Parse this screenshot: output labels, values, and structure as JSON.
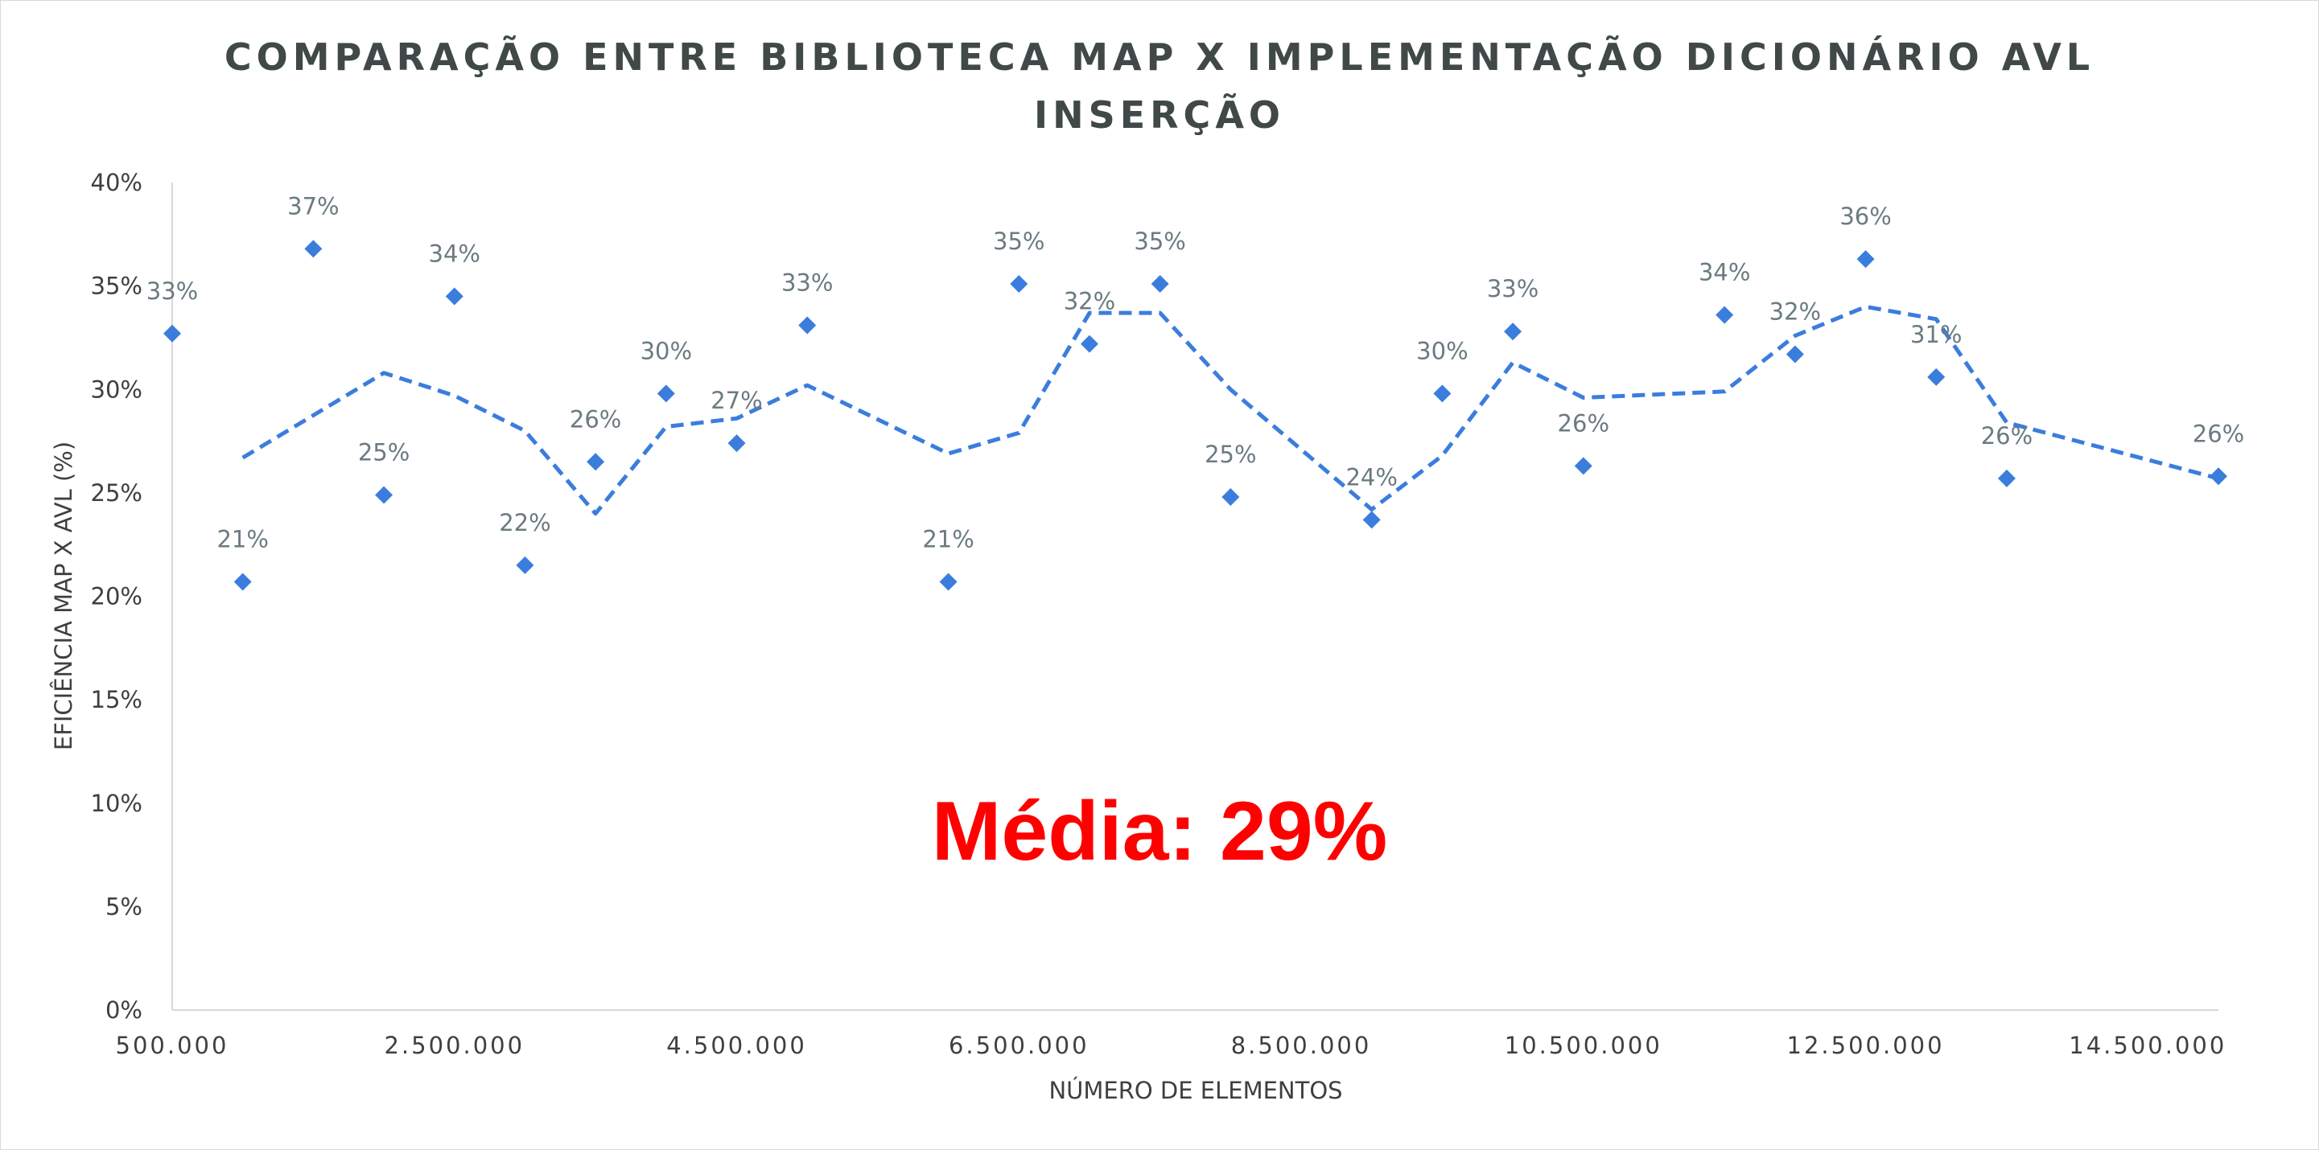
{
  "chart_data": {
    "type": "scatter",
    "title_lines": [
      "COMPARAÇÃO ENTRE BIBLIOTECA MAP X IMPLEMENTAÇÃO DICIONÁRIO AVL",
      "INSERÇÃO"
    ],
    "xlabel": "NÚMERO DE ELEMENTOS",
    "ylabel": "EFICIÊNCIA MAP X AVL (%)",
    "xlim": [
      500000,
      15000000
    ],
    "ylim": [
      0,
      40
    ],
    "x_ticks": [
      {
        "value": 500000,
        "label": "500.000"
      },
      {
        "value": 2500000,
        "label": "2.500.000"
      },
      {
        "value": 4500000,
        "label": "4.500.000"
      },
      {
        "value": 6500000,
        "label": "6.500.000"
      },
      {
        "value": 8500000,
        "label": "8.500.000"
      },
      {
        "value": 10500000,
        "label": "10.500.000"
      },
      {
        "value": 12500000,
        "label": "12.500.000"
      },
      {
        "value": 14500000,
        "label": "14.500.000"
      }
    ],
    "y_ticks": [
      {
        "value": 0,
        "label": "0%"
      },
      {
        "value": 5,
        "label": "5%"
      },
      {
        "value": 10,
        "label": "10%"
      },
      {
        "value": 15,
        "label": "15%"
      },
      {
        "value": 20,
        "label": "20%"
      },
      {
        "value": 25,
        "label": "25%"
      },
      {
        "value": 30,
        "label": "30%"
      },
      {
        "value": 35,
        "label": "35%"
      },
      {
        "value": 40,
        "label": "40%"
      }
    ],
    "gridlines": false,
    "points": [
      {
        "x": 500000,
        "y": 32.7,
        "label": "33%"
      },
      {
        "x": 1000000,
        "y": 20.7,
        "label": "21%"
      },
      {
        "x": 1500000,
        "y": 36.8,
        "label": "37%"
      },
      {
        "x": 2000000,
        "y": 24.9,
        "label": "25%"
      },
      {
        "x": 2500000,
        "y": 34.5,
        "label": "34%"
      },
      {
        "x": 3000000,
        "y": 21.5,
        "label": "22%"
      },
      {
        "x": 3500000,
        "y": 26.5,
        "label": "26%"
      },
      {
        "x": 4000000,
        "y": 29.8,
        "label": "30%"
      },
      {
        "x": 4500000,
        "y": 27.4,
        "label": "27%"
      },
      {
        "x": 5000000,
        "y": 33.1,
        "label": "33%"
      },
      {
        "x": 6000000,
        "y": 20.7,
        "label": "21%"
      },
      {
        "x": 6500000,
        "y": 35.1,
        "label": "35%"
      },
      {
        "x": 7000000,
        "y": 32.2,
        "label": "32%"
      },
      {
        "x": 7500000,
        "y": 35.1,
        "label": "35%"
      },
      {
        "x": 8000000,
        "y": 24.8,
        "label": "25%"
      },
      {
        "x": 9000000,
        "y": 23.7,
        "label": "24%"
      },
      {
        "x": 9500000,
        "y": 29.8,
        "label": "30%"
      },
      {
        "x": 10000000,
        "y": 32.8,
        "label": "33%"
      },
      {
        "x": 10500000,
        "y": 26.3,
        "label": "26%"
      },
      {
        "x": 11500000,
        "y": 33.6,
        "label": "34%"
      },
      {
        "x": 12000000,
        "y": 31.7,
        "label": "32%"
      },
      {
        "x": 12500000,
        "y": 36.3,
        "label": "36%"
      },
      {
        "x": 13000000,
        "y": 30.6,
        "label": "31%"
      },
      {
        "x": 13500000,
        "y": 25.7,
        "label": "26%"
      },
      {
        "x": 15000000,
        "y": 25.8,
        "label": "26%"
      }
    ],
    "trendline": {
      "style": "dashed",
      "points": [
        {
          "x": 1000000,
          "y": 26.7
        },
        {
          "x": 2000000,
          "y": 30.8
        },
        {
          "x": 2500000,
          "y": 29.7
        },
        {
          "x": 3000000,
          "y": 28.0
        },
        {
          "x": 3500000,
          "y": 24.0
        },
        {
          "x": 4000000,
          "y": 28.2
        },
        {
          "x": 4500000,
          "y": 28.6
        },
        {
          "x": 5000000,
          "y": 30.2
        },
        {
          "x": 6000000,
          "y": 26.9
        },
        {
          "x": 6500000,
          "y": 27.9
        },
        {
          "x": 7000000,
          "y": 33.7
        },
        {
          "x": 7500000,
          "y": 33.7
        },
        {
          "x": 8000000,
          "y": 30.0
        },
        {
          "x": 9000000,
          "y": 24.2
        },
        {
          "x": 9500000,
          "y": 26.8
        },
        {
          "x": 10000000,
          "y": 31.3
        },
        {
          "x": 10500000,
          "y": 29.6
        },
        {
          "x": 11500000,
          "y": 29.9
        },
        {
          "x": 12000000,
          "y": 32.6
        },
        {
          "x": 12500000,
          "y": 34.0
        },
        {
          "x": 13000000,
          "y": 33.4
        },
        {
          "x": 13500000,
          "y": 28.4
        },
        {
          "x": 15000000,
          "y": 25.7
        }
      ]
    },
    "annotation": "Média: 29%"
  },
  "colors": {
    "marker": "#3b7ddd",
    "trendline": "#3b7ddd",
    "axis": "#d9d9d9",
    "annotation": "#ff0000"
  }
}
